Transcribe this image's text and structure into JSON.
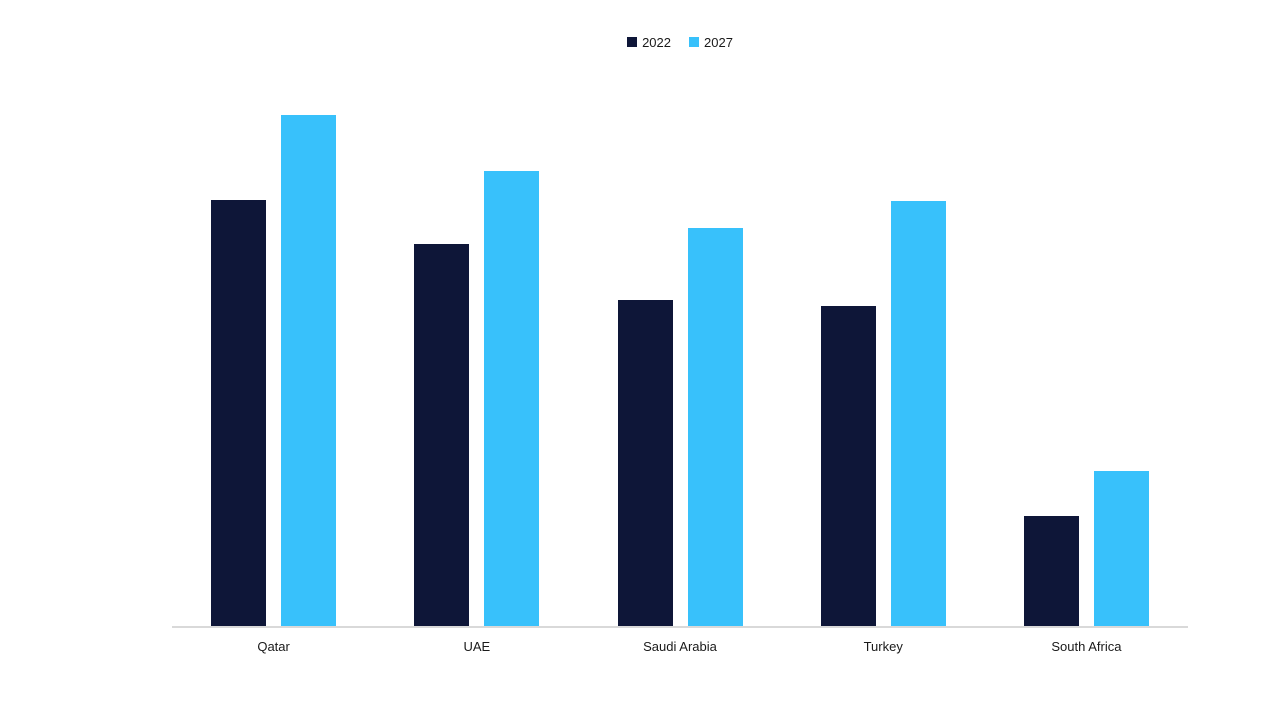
{
  "page": {
    "background": "#FFFFFF"
  },
  "chart_data": {
    "type": "bar",
    "title": "",
    "xlabel": "",
    "ylabel": "",
    "categories": [
      "Qatar",
      "UAE",
      "Saudi Arabia",
      "Turkey",
      "South Africa"
    ],
    "series": [
      {
        "name": "2022",
        "color": "#0E1638",
        "values": [
          426,
          382,
          326,
          320,
          110
        ]
      },
      {
        "name": "2027",
        "color": "#38C1FB",
        "values": [
          511,
          455,
          398,
          425,
          155
        ]
      }
    ],
    "value_note": "no value axis, ticks or data labels shown; values are bar heights in px estimated from pixels",
    "ylim": [
      0,
      546
    ],
    "grid": false,
    "legend_position": "top-center",
    "axis_line_color": "#D9D9D9",
    "label_color": "#1A1A1A"
  }
}
